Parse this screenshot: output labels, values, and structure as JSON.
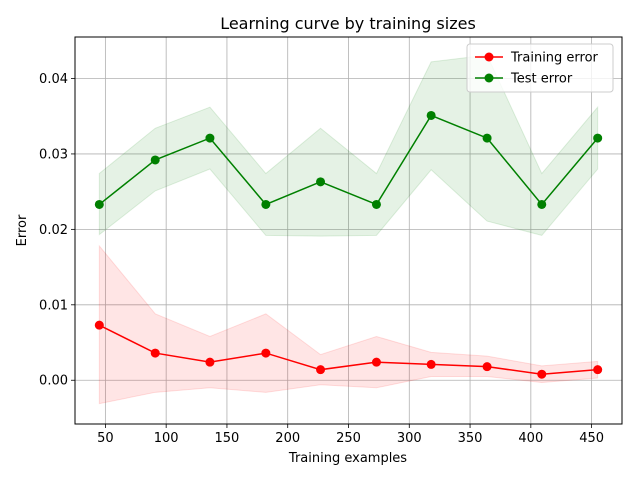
{
  "chart_data": {
    "type": "line",
    "title": "Learning curve by training sizes",
    "xlabel": "Training examples",
    "ylabel": "Error",
    "xlim": [
      25,
      475
    ],
    "ylim": [
      -0.0058,
      0.0455
    ],
    "xticks": [
      50,
      100,
      150,
      200,
      250,
      300,
      350,
      400,
      450
    ],
    "yticks": [
      0.0,
      0.01,
      0.02,
      0.03,
      0.04
    ],
    "ytick_labels": [
      "0.00",
      "0.01",
      "0.02",
      "0.03",
      "0.04"
    ],
    "grid": true,
    "legend_position": "top-right",
    "x": [
      45,
      91,
      136,
      182,
      227,
      273,
      318,
      364,
      409,
      455
    ],
    "series": [
      {
        "name": "Training error",
        "color": "#ff0000",
        "values": [
          0.0073,
          0.0036,
          0.0024,
          0.0036,
          0.0014,
          0.0024,
          0.0021,
          0.0018,
          0.0008,
          0.0014
        ],
        "band_low": [
          -0.0031,
          -0.0016,
          -0.001,
          -0.0016,
          -0.0006,
          -0.001,
          0.0005,
          0.0005,
          -0.0003,
          0.0003
        ],
        "band_high": [
          0.0178,
          0.0088,
          0.0058,
          0.0088,
          0.0034,
          0.0058,
          0.0037,
          0.0032,
          0.0019,
          0.0025
        ]
      },
      {
        "name": "Test error",
        "color": "#008000",
        "values": [
          0.0233,
          0.0292,
          0.0321,
          0.0233,
          0.0263,
          0.0233,
          0.0351,
          0.0321,
          0.0233,
          0.0321
        ],
        "band_low": [
          0.0193,
          0.0251,
          0.028,
          0.0192,
          0.0191,
          0.0192,
          0.0279,
          0.0211,
          0.0192,
          0.028
        ],
        "band_high": [
          0.0274,
          0.0334,
          0.0362,
          0.0274,
          0.0334,
          0.0274,
          0.0422,
          0.0431,
          0.0274,
          0.0362
        ]
      }
    ]
  }
}
